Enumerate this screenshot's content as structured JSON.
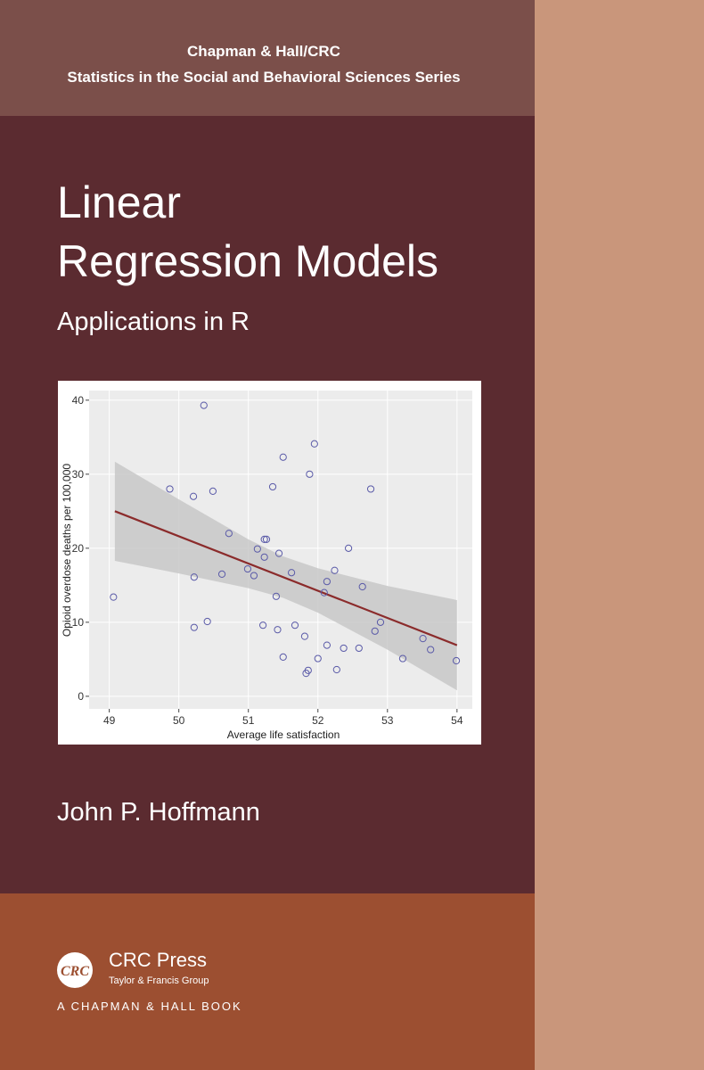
{
  "header": {
    "line1": "Chapman & Hall/CRC",
    "line2": "Statistics in the Social and Behavioral Sciences Series"
  },
  "title": {
    "line1": "Linear",
    "line2": "Regression Models"
  },
  "subtitle": "Applications in R",
  "chart_data": {
    "type": "scatter",
    "x_label": "Average life satisfaction",
    "y_label": "Opioid overdose deaths per 100,000",
    "x": [
      49.06,
      49.87,
      50.21,
      50.22,
      50.22,
      50.36,
      50.41,
      50.49,
      50.62,
      50.72,
      50.99,
      51.08,
      51.13,
      51.21,
      51.23,
      51.26,
      51.23,
      51.35,
      51.4,
      51.42,
      51.44,
      51.5,
      51.5,
      51.62,
      51.67,
      51.81,
      51.83,
      51.86,
      51.88,
      51.95,
      52.0,
      52.09,
      52.13,
      52.13,
      52.24,
      52.27,
      52.37,
      52.44,
      52.59,
      52.64,
      52.76,
      52.82,
      52.9,
      53.22,
      53.51,
      53.62,
      53.99
    ],
    "values": [
      13.4,
      28.0,
      27.0,
      16.1,
      9.3,
      39.3,
      10.1,
      27.7,
      16.5,
      22.0,
      17.2,
      16.3,
      19.9,
      9.6,
      21.2,
      21.2,
      18.8,
      28.3,
      13.5,
      9.0,
      19.3,
      32.3,
      5.3,
      16.7,
      9.6,
      8.1,
      3.1,
      3.5,
      30.0,
      34.1,
      5.1,
      14.0,
      15.5,
      6.9,
      17.0,
      3.6,
      6.5,
      20.0,
      6.5,
      14.8,
      28.0,
      8.8,
      10.0,
      5.1,
      7.8,
      6.3,
      4.8
    ],
    "color": "#5a5aa8",
    "fit_x": [
      49.08,
      54.0
    ],
    "fit_values": [
      25.0,
      6.9
    ],
    "fit_color": "#8b2b2b",
    "band_x": [
      49.08,
      50.0,
      51.0,
      51.5,
      52.0,
      53.0,
      54.0
    ],
    "band_upper": [
      31.7,
      26.6,
      21.2,
      18.9,
      17.3,
      14.9,
      13.0
    ],
    "band_lower": [
      18.3,
      16.6,
      14.6,
      13.3,
      11.3,
      6.3,
      0.8
    ],
    "band_color": "#c8c8c8",
    "xlim": [
      48.71,
      54.22
    ],
    "ylim": [
      -1.7,
      41.3
    ],
    "xticks": [
      49,
      50,
      51,
      52,
      53,
      54
    ],
    "yticks": [
      0,
      10,
      20,
      30,
      40
    ],
    "grid": true
  },
  "author": "John P. Hoffmann",
  "publisher": {
    "logo": "CRC",
    "name": "CRC Press",
    "group": "Taylor & Francis Group",
    "imprint": "A CHAPMAN & HALL BOOK"
  }
}
